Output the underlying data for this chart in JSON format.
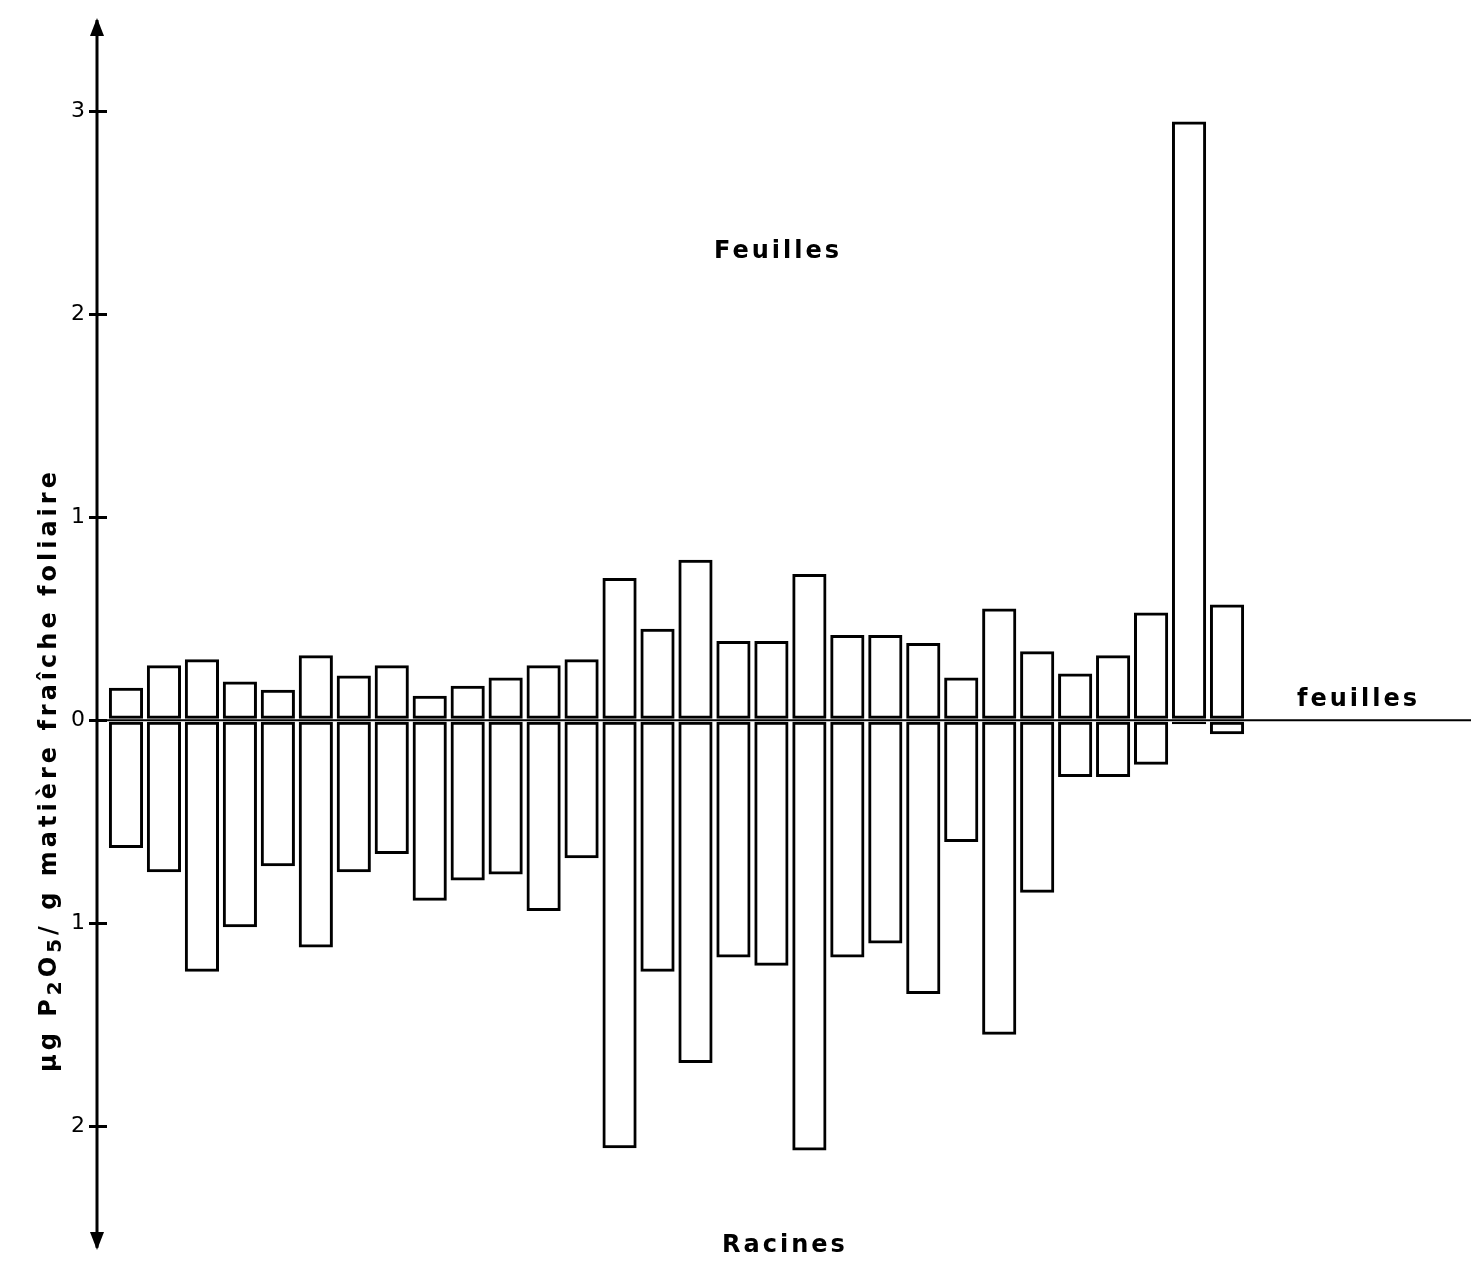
{
  "chart_data": {
    "type": "bar",
    "ylabel": "µg P$_{2}$O$_{5}$/ g matière fraîche foliaire",
    "categories": [
      null,
      null,
      null,
      null,
      null,
      null,
      null,
      null,
      null,
      null,
      null,
      null,
      null,
      null,
      null,
      null,
      null,
      null,
      null,
      null,
      null,
      null,
      null,
      null,
      null,
      null,
      null,
      null,
      null,
      null
    ],
    "stacked": true,
    "series": [
      {
        "color": "#000000",
        "values": [
          0.16,
          0.27,
          0.3,
          0.19,
          0.15,
          0.32,
          0.22,
          0.27,
          0.12,
          0.17,
          0.21,
          0.27,
          0.3,
          0.7,
          0.45,
          0.79,
          0.39,
          0.39,
          0.72,
          0.42,
          0.42,
          0.38,
          0.21,
          0.55,
          0.34,
          0.23,
          0.32,
          0.53,
          2.95,
          0.57
        ]
      },
      {
        "color": "#000000",
        "values": [
          -0.63,
          -0.75,
          -1.24,
          -1.02,
          -0.72,
          -1.12,
          -0.75,
          -0.66,
          -0.89,
          -0.79,
          -0.76,
          -0.94,
          -0.68,
          -2.11,
          -1.24,
          -1.69,
          -1.17,
          -1.21,
          -2.12,
          -1.17,
          -1.1,
          -1.35,
          -0.6,
          -1.55,
          -0.85,
          -0.28,
          -0.28,
          -0.22,
          -0.02,
          -0.07
        ]
      }
    ],
    "ylim": [
      -2.6,
      3.45
    ],
    "yticks": [
      {
        "value": -2,
        "label": "2"
      },
      {
        "value": -1,
        "label": "1"
      },
      0,
      1,
      2,
      3
    ],
    "ref_lines": [
      {
        "axis": "y",
        "value": 0,
        "label": "feuilles",
        "color": "#000000"
      }
    ],
    "annotations": [
      "Feuilles",
      "Racines"
    ],
    "grid": false,
    "legend": false
  }
}
